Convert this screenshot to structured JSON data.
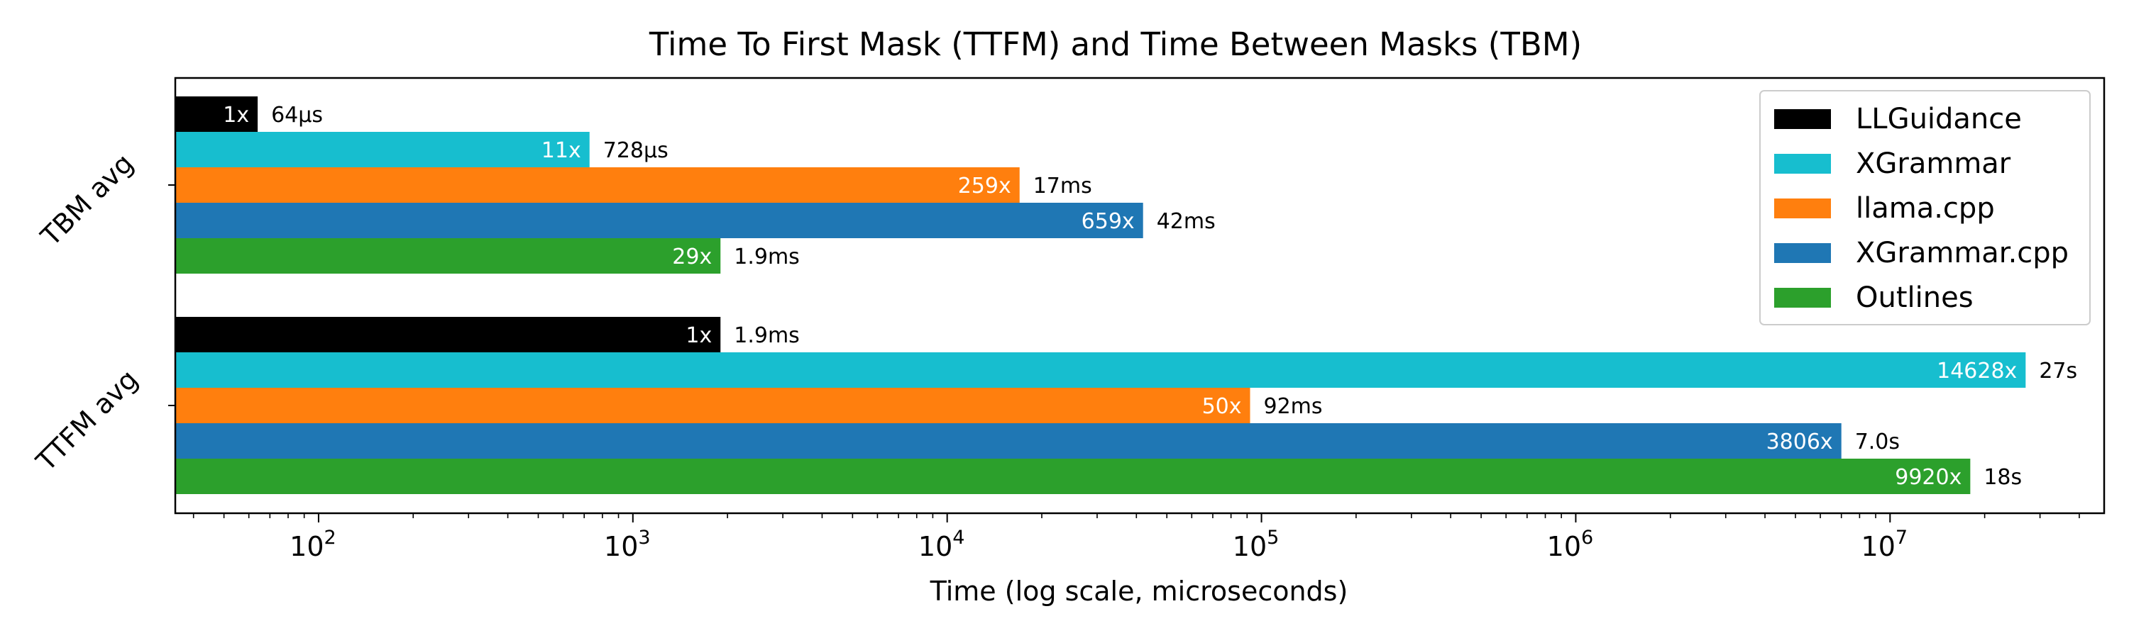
{
  "chart_data": {
    "type": "bar",
    "orientation": "horizontal",
    "title": "Time To First Mask (TTFM) and Time Between Masks (TBM)",
    "xlabel": "Time (log scale, microseconds)",
    "xscale": "log",
    "xlim": [
      35,
      48000000
    ],
    "xticks": [
      {
        "value": 100,
        "base": "10",
        "exp": "2"
      },
      {
        "value": 1000,
        "base": "10",
        "exp": "3"
      },
      {
        "value": 10000,
        "base": "10",
        "exp": "4"
      },
      {
        "value": 100000,
        "base": "10",
        "exp": "5"
      },
      {
        "value": 1000000,
        "base": "10",
        "exp": "6"
      },
      {
        "value": 10000000,
        "base": "10",
        "exp": "7"
      }
    ],
    "categories": [
      "TBM avg",
      "TTFM avg"
    ],
    "legend_position": "top-right",
    "grid": false,
    "series": [
      {
        "name": "LLGuidance",
        "color": "#000000",
        "values": [
          64,
          1900
        ],
        "ratio_labels": [
          "1x",
          "1x"
        ],
        "value_labels": [
          "64µs",
          "1.9ms"
        ]
      },
      {
        "name": "XGrammar",
        "color": "#17becf",
        "values": [
          728,
          27000000
        ],
        "ratio_labels": [
          "11x",
          "14628x"
        ],
        "value_labels": [
          "728µs",
          "27s"
        ]
      },
      {
        "name": "llama.cpp",
        "color": "#ff7f0e",
        "values": [
          17000,
          92000
        ],
        "ratio_labels": [
          "259x",
          "50x"
        ],
        "value_labels": [
          "17ms",
          "92ms"
        ]
      },
      {
        "name": "XGrammar.cpp",
        "color": "#1f77b4",
        "values": [
          42000,
          7000000
        ],
        "ratio_labels": [
          "659x",
          "3806x"
        ],
        "value_labels": [
          "42ms",
          "7.0s"
        ]
      },
      {
        "name": "Outlines",
        "color": "#2ca02c",
        "values": [
          1900,
          18000000
        ],
        "ratio_labels": [
          "29x",
          "9920x"
        ],
        "value_labels": [
          "1.9ms",
          "18s"
        ]
      }
    ]
  }
}
